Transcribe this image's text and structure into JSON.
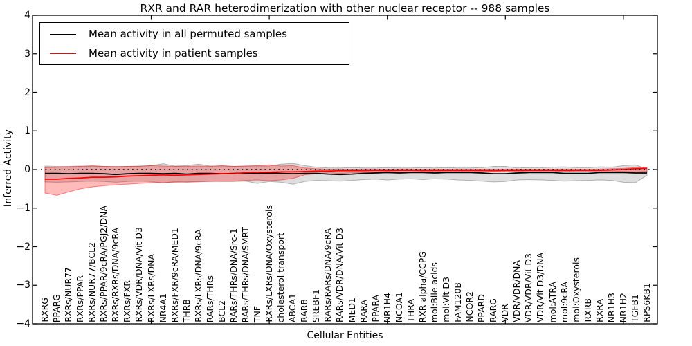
{
  "figure": {
    "title": "RXR and RAR heterodimerization with other nuclear receptor -- 988 samples",
    "xlabel": "Cellular Entities",
    "ylabel": "Inferred Activity"
  },
  "legend": {
    "items": [
      {
        "label": "Mean activity in all permuted samples",
        "color": "#000000"
      },
      {
        "label": "Mean activity in patient samples",
        "color": "#ff0000"
      }
    ]
  },
  "chart_data": {
    "type": "line",
    "title": "RXR and RAR heterodimerization with other nuclear receptor -- 988 samples",
    "xlabel": "Cellular Entities",
    "ylabel": "Inferred Activity",
    "ylim": [
      -4,
      4
    ],
    "grid": false,
    "legend_position": "upper left",
    "ytick_values": [
      4,
      3,
      2,
      1,
      0,
      -1,
      -2,
      -3,
      -4
    ],
    "ytick_labels": [
      "4",
      "3",
      "2",
      "1",
      "0",
      "−1",
      "−2",
      "−3",
      "−4"
    ],
    "frame_tick_positions": [
      10,
      20,
      30,
      40,
      50
    ],
    "reference_line": {
      "y": 0,
      "style": "dotted",
      "color": "#000000"
    },
    "categories": [
      "RXRG",
      "PPARG",
      "RXRs/NUR77",
      "RXRs/PPAR",
      "RXRs/NUR77/BCL2",
      "RXRs/PPAR/9cRA/PGJ2/DNA",
      "RXRs/RXRs/DNA/9cRA",
      "RXRs/FXR",
      "RXRs/VDR/DNA/Vit D3",
      "RXRs/LXRs/DNA",
      "NR4A1",
      "RXRs/FXR/9cRA/MED1",
      "THRB",
      "RXRs/LXRs/DNA/9cRA",
      "RARs/THRs",
      "BCL2",
      "RARs/THRs/DNA/Src-1",
      "RARs/THRs/DNA/SMRT",
      "TNF",
      "RXRs/LXRs/DNA/Oxysterols",
      "cholesterol transport",
      "ABCA1",
      "RARB",
      "SREBF1",
      "RARs/RARs/DNA/9cRA",
      "RARs/VDR/DNA/Vit D3",
      "MED1",
      "RARA",
      "PPARA",
      "NR1H4",
      "NCOA1",
      "THRA",
      "RXR alpha/CCPG",
      "mol:Bile acids",
      "mol:Vit D3",
      "FAM120B",
      "NCOR2",
      "PPARD",
      "RARG",
      "VDR",
      "VDR/VDR/DNA",
      "VDR/VDR/Vit D3",
      "VDR/Vit D3/DNA",
      "mol:ATRA",
      "mol:9cRA",
      "mol:Oxysterols",
      "RXRB",
      "RXRA",
      "NR1H3",
      "NR1H2",
      "TGFB1",
      "RPS6KB1"
    ],
    "series": [
      {
        "name": "Mean activity in all permuted samples",
        "slug": "permuted",
        "color": "#000000",
        "band_fill": "rgba(0,0,0,0.13)",
        "band_edge": "rgba(100,100,100,0.45)",
        "values": [
          -0.1,
          -0.1,
          -0.11,
          -0.1,
          -0.1,
          -0.11,
          -0.13,
          -0.11,
          -0.1,
          -0.1,
          -0.11,
          -0.1,
          -0.12,
          -0.1,
          -0.1,
          -0.11,
          -0.1,
          -0.09,
          -0.1,
          -0.09,
          -0.1,
          -0.11,
          -0.1,
          -0.1,
          -0.12,
          -0.13,
          -0.12,
          -0.1,
          -0.09,
          -0.08,
          -0.09,
          -0.08,
          -0.08,
          -0.09,
          -0.08,
          -0.08,
          -0.08,
          -0.09,
          -0.11,
          -0.11,
          -0.09,
          -0.08,
          -0.08,
          -0.08,
          -0.1,
          -0.1,
          -0.1,
          -0.08,
          -0.08,
          -0.08,
          -0.09,
          -0.09
        ],
        "band_upper": [
          0.09,
          0.08,
          0.08,
          0.09,
          0.08,
          0.08,
          0.08,
          0.08,
          0.09,
          0.1,
          0.15,
          0.09,
          0.1,
          0.14,
          0.09,
          0.09,
          0.08,
          0.09,
          0.09,
          0.09,
          0.14,
          0.16,
          0.1,
          0.06,
          0.04,
          0.04,
          0.05,
          0.04,
          0.04,
          0.05,
          0.04,
          0.04,
          0.05,
          0.04,
          0.05,
          0.04,
          0.04,
          0.05,
          0.08,
          0.08,
          0.04,
          0.05,
          0.05,
          0.06,
          0.07,
          0.05,
          0.05,
          0.07,
          0.06,
          0.1,
          0.12,
          0.02
        ],
        "band_lower": [
          -0.32,
          -0.33,
          -0.32,
          -0.31,
          -0.3,
          -0.31,
          -0.33,
          -0.31,
          -0.3,
          -0.31,
          -0.35,
          -0.31,
          -0.33,
          -0.32,
          -0.3,
          -0.31,
          -0.31,
          -0.3,
          -0.36,
          -0.31,
          -0.33,
          -0.38,
          -0.31,
          -0.28,
          -0.29,
          -0.3,
          -0.28,
          -0.26,
          -0.25,
          -0.27,
          -0.25,
          -0.24,
          -0.26,
          -0.24,
          -0.25,
          -0.27,
          -0.28,
          -0.3,
          -0.32,
          -0.31,
          -0.27,
          -0.26,
          -0.27,
          -0.28,
          -0.3,
          -0.29,
          -0.28,
          -0.27,
          -0.28,
          -0.33,
          -0.34,
          -0.15
        ]
      },
      {
        "name": "Mean activity in patient samples",
        "slug": "patient",
        "color": "#ff0000",
        "band_fill": "rgba(255,0,0,0.27)",
        "band_edge": "rgba(255,0,0,0.45)",
        "values": [
          -0.25,
          -0.25,
          -0.23,
          -0.22,
          -0.2,
          -0.2,
          -0.19,
          -0.17,
          -0.16,
          -0.15,
          -0.14,
          -0.15,
          -0.14,
          -0.13,
          -0.12,
          -0.11,
          -0.11,
          -0.08,
          -0.07,
          -0.07,
          -0.06,
          -0.06,
          -0.05,
          -0.04,
          -0.04,
          -0.03,
          -0.03,
          -0.03,
          -0.02,
          -0.03,
          -0.02,
          -0.02,
          -0.03,
          -0.02,
          -0.02,
          -0.02,
          -0.02,
          -0.02,
          -0.03,
          -0.02,
          -0.02,
          -0.02,
          -0.02,
          -0.02,
          -0.02,
          -0.02,
          -0.02,
          -0.02,
          -0.01,
          0.0,
          0.02,
          0.03
        ],
        "band_upper": [
          0.05,
          0.06,
          0.07,
          0.08,
          0.1,
          0.08,
          0.07,
          0.08,
          0.08,
          0.1,
          0.09,
          0.08,
          0.08,
          0.09,
          0.08,
          0.1,
          0.08,
          0.09,
          0.1,
          0.12,
          0.09,
          0.1,
          0.04,
          0.02,
          0.01,
          0.01,
          0.01,
          0.01,
          0.01,
          0.01,
          0.01,
          0.01,
          0.01,
          0.01,
          0.01,
          0.01,
          0.01,
          0.01,
          0.01,
          0.01,
          0.01,
          0.01,
          0.01,
          0.01,
          0.01,
          0.01,
          0.01,
          0.01,
          0.02,
          0.03,
          0.05,
          0.06
        ],
        "band_lower": [
          -0.61,
          -0.67,
          -0.58,
          -0.5,
          -0.45,
          -0.42,
          -0.4,
          -0.38,
          -0.36,
          -0.34,
          -0.34,
          -0.33,
          -0.32,
          -0.31,
          -0.31,
          -0.3,
          -0.3,
          -0.28,
          -0.27,
          -0.29,
          -0.27,
          -0.23,
          -0.14,
          -0.11,
          -0.09,
          -0.1,
          -0.09,
          -0.08,
          -0.07,
          -0.08,
          -0.06,
          -0.06,
          -0.07,
          -0.05,
          -0.05,
          -0.05,
          -0.05,
          -0.05,
          -0.06,
          -0.05,
          -0.05,
          -0.04,
          -0.04,
          -0.04,
          -0.05,
          -0.04,
          -0.04,
          -0.04,
          -0.04,
          -0.05,
          -0.06,
          -0.05
        ]
      }
    ]
  }
}
